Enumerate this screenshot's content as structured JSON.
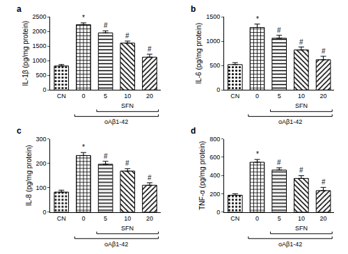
{
  "chart_data": [
    {
      "type": "bar",
      "panel": "a",
      "y_label": "IL-1β (pg/mg protein)",
      "categories": [
        "CN",
        "0",
        "5",
        "10",
        "20"
      ],
      "values": [
        820,
        2230,
        1950,
        1600,
        1120
      ],
      "errors": [
        50,
        60,
        70,
        70,
        100
      ],
      "color": "#000000",
      "ylim": [
        0,
        2500
      ],
      "yticks": [
        0,
        500,
        1000,
        1500,
        2000,
        2500
      ],
      "grid": false,
      "annotations": [
        {
          "category": "0",
          "text": "*"
        },
        {
          "category": "5",
          "text": "#"
        },
        {
          "category": "10",
          "text": "#"
        },
        {
          "category": "20",
          "text": "#"
        }
      ],
      "brackets": [
        {
          "text": "SFN",
          "from": "5",
          "to": "20"
        },
        {
          "text": "oAβ1-42",
          "from": "0",
          "to": "20"
        }
      ]
    },
    {
      "type": "bar",
      "panel": "b",
      "y_label": "IL-6 (pg/mg protein)",
      "categories": [
        "CN",
        "0",
        "5",
        "10",
        "20"
      ],
      "values": [
        520,
        1280,
        1060,
        820,
        620
      ],
      "errors": [
        40,
        70,
        60,
        60,
        70
      ],
      "color": "#000000",
      "ylim": [
        0,
        1500
      ],
      "yticks": [
        0,
        500,
        1000,
        1500
      ],
      "grid": false,
      "annotations": [
        {
          "category": "0",
          "text": "*"
        },
        {
          "category": "5",
          "text": "#"
        },
        {
          "category": "10",
          "text": "#"
        },
        {
          "category": "20",
          "text": "#"
        }
      ],
      "brackets": [
        {
          "text": "SFN",
          "from": "5",
          "to": "20"
        },
        {
          "text": "oAβ1-42",
          "from": "0",
          "to": "20"
        }
      ]
    },
    {
      "type": "bar",
      "panel": "c",
      "y_label": "IL-8 (pg/mg protein)",
      "categories": [
        "CN",
        "0",
        "5",
        "10",
        "20"
      ],
      "values": [
        82,
        232,
        196,
        168,
        110
      ],
      "errors": [
        8,
        12,
        12,
        10,
        10
      ],
      "color": "#000000",
      "ylim": [
        0,
        300
      ],
      "yticks": [
        0,
        100,
        200,
        300
      ],
      "grid": false,
      "annotations": [
        {
          "category": "0",
          "text": "*"
        },
        {
          "category": "5",
          "text": "#"
        },
        {
          "category": "10",
          "text": "#"
        },
        {
          "category": "20",
          "text": "#"
        }
      ],
      "brackets": [
        {
          "text": "SFN",
          "from": "5",
          "to": "20"
        },
        {
          "text": "oAβ1-42",
          "from": "0",
          "to": "20"
        }
      ]
    },
    {
      "type": "bar",
      "panel": "d",
      "y_label": "TNF-α (pg/mg protein)",
      "categories": [
        "CN",
        "0",
        "5",
        "10",
        "20"
      ],
      "values": [
        185,
        545,
        460,
        368,
        235
      ],
      "errors": [
        15,
        30,
        25,
        30,
        35
      ],
      "color": "#000000",
      "ylim": [
        0,
        800
      ],
      "yticks": [
        0,
        200,
        400,
        600,
        800
      ],
      "grid": false,
      "annotations": [
        {
          "category": "0",
          "text": "*"
        },
        {
          "category": "5",
          "text": "#"
        },
        {
          "category": "10",
          "text": "#"
        },
        {
          "category": "20",
          "text": "#"
        }
      ],
      "brackets": [
        {
          "text": "SFN",
          "from": "5",
          "to": "20"
        },
        {
          "text": "oAβ1-42",
          "from": "0",
          "to": "20"
        }
      ]
    }
  ]
}
